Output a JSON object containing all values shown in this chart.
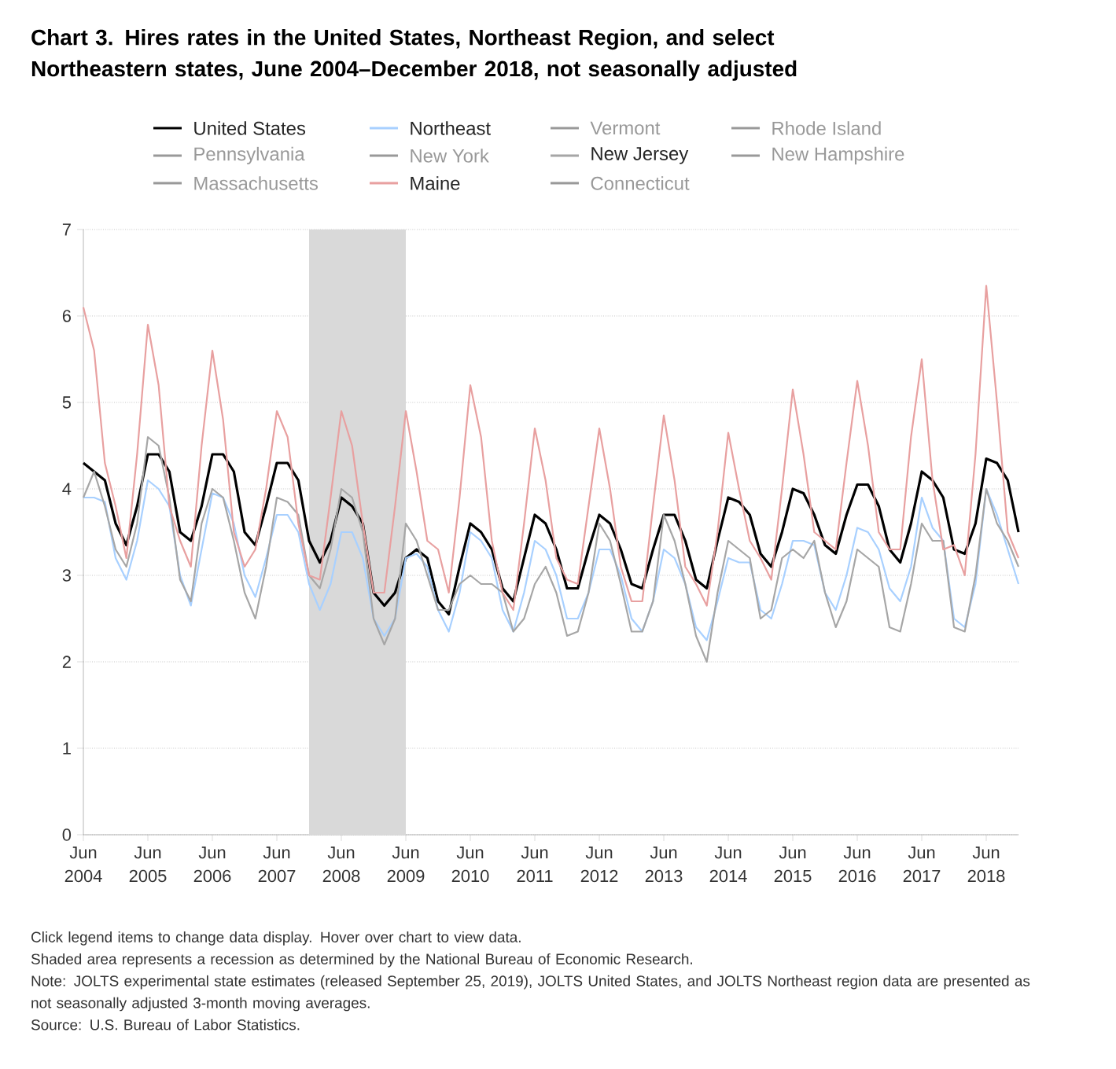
{
  "chart_data": {
    "type": "line",
    "title": "Chart 3. Hires rates in the United States, Northeast Region, and select Northeastern states, June 2004–December 2018, not seasonally adjusted",
    "x": [
      "2004-06",
      "2004-08",
      "2004-10",
      "2004-12",
      "2005-02",
      "2005-04",
      "2005-06",
      "2005-08",
      "2005-10",
      "2005-12",
      "2006-02",
      "2006-04",
      "2006-06",
      "2006-08",
      "2006-10",
      "2006-12",
      "2007-02",
      "2007-04",
      "2007-06",
      "2007-08",
      "2007-10",
      "2007-12",
      "2008-02",
      "2008-04",
      "2008-06",
      "2008-08",
      "2008-10",
      "2008-12",
      "2009-02",
      "2009-04",
      "2009-06",
      "2009-08",
      "2009-10",
      "2009-12",
      "2010-02",
      "2010-04",
      "2010-06",
      "2010-08",
      "2010-10",
      "2010-12",
      "2011-02",
      "2011-04",
      "2011-06",
      "2011-08",
      "2011-10",
      "2011-12",
      "2012-02",
      "2012-04",
      "2012-06",
      "2012-08",
      "2012-10",
      "2012-12",
      "2013-02",
      "2013-04",
      "2013-06",
      "2013-08",
      "2013-10",
      "2013-12",
      "2014-02",
      "2014-04",
      "2014-06",
      "2014-08",
      "2014-10",
      "2014-12",
      "2015-02",
      "2015-04",
      "2015-06",
      "2015-08",
      "2015-10",
      "2015-12",
      "2016-02",
      "2016-04",
      "2016-06",
      "2016-08",
      "2016-10",
      "2016-12",
      "2017-02",
      "2017-04",
      "2017-06",
      "2017-08",
      "2017-10",
      "2017-12",
      "2018-02",
      "2018-04",
      "2018-06",
      "2018-08",
      "2018-10",
      "2018-12"
    ],
    "series": [
      {
        "name": "United States",
        "color": "#000000",
        "values": [
          4.3,
          4.2,
          4.1,
          3.6,
          3.35,
          3.8,
          4.4,
          4.4,
          4.2,
          3.5,
          3.4,
          3.8,
          4.4,
          4.4,
          4.2,
          3.5,
          3.35,
          3.8,
          4.3,
          4.3,
          4.1,
          3.4,
          3.15,
          3.4,
          3.9,
          3.8,
          3.6,
          2.8,
          2.65,
          2.8,
          3.2,
          3.3,
          3.2,
          2.7,
          2.55,
          3.1,
          3.6,
          3.5,
          3.3,
          2.85,
          2.7,
          3.2,
          3.7,
          3.6,
          3.3,
          2.85,
          2.85,
          3.3,
          3.7,
          3.6,
          3.3,
          2.9,
          2.85,
          3.3,
          3.7,
          3.7,
          3.4,
          2.95,
          2.85,
          3.4,
          3.9,
          3.85,
          3.7,
          3.25,
          3.1,
          3.5,
          4.0,
          3.95,
          3.7,
          3.35,
          3.25,
          3.7,
          4.05,
          4.05,
          3.8,
          3.3,
          3.15,
          3.6,
          4.2,
          4.1,
          3.9,
          3.3,
          3.25,
          3.6,
          4.35,
          4.3,
          4.1,
          3.5
        ]
      },
      {
        "name": "Northeast",
        "color": "#a8d0ff",
        "values": [
          3.9,
          3.9,
          3.85,
          3.2,
          2.95,
          3.4,
          4.1,
          4.0,
          3.8,
          3.0,
          2.65,
          3.3,
          3.95,
          3.9,
          3.6,
          3.0,
          2.75,
          3.2,
          3.7,
          3.7,
          3.5,
          2.9,
          2.6,
          2.9,
          3.5,
          3.5,
          3.2,
          2.5,
          2.3,
          2.5,
          3.2,
          3.25,
          3.1,
          2.6,
          2.35,
          2.8,
          3.5,
          3.4,
          3.2,
          2.6,
          2.35,
          2.8,
          3.4,
          3.3,
          3.0,
          2.5,
          2.5,
          2.8,
          3.3,
          3.3,
          3.0,
          2.5,
          2.35,
          2.7,
          3.3,
          3.2,
          2.9,
          2.4,
          2.25,
          2.7,
          3.2,
          3.15,
          3.15,
          2.6,
          2.5,
          2.9,
          3.4,
          3.4,
          3.35,
          2.8,
          2.6,
          3.0,
          3.55,
          3.5,
          3.3,
          2.85,
          2.7,
          3.1,
          3.9,
          3.55,
          3.4,
          2.5,
          2.4,
          2.9,
          4.0,
          3.7,
          3.3,
          2.9
        ]
      },
      {
        "name": "Vermont",
        "color": "#999999",
        "values": [
          null,
          null,
          null,
          null,
          null,
          null,
          null,
          null,
          null,
          null,
          null,
          null,
          null,
          null,
          null,
          null,
          null,
          null,
          null,
          null,
          null,
          null,
          null,
          null,
          null,
          null,
          null,
          null,
          null,
          null,
          null,
          null,
          null,
          null,
          null,
          null,
          null,
          null,
          null,
          null,
          null,
          null,
          null,
          null,
          null,
          null,
          null,
          null,
          null,
          null,
          null,
          null,
          null,
          null,
          null,
          null,
          null,
          null,
          null,
          null,
          null,
          null,
          null,
          null,
          null,
          null,
          null,
          null,
          null,
          null,
          null,
          null,
          null,
          null,
          null,
          null,
          null,
          null,
          null,
          null,
          null,
          null,
          null,
          null,
          null,
          null,
          null,
          null
        ]
      },
      {
        "name": "Rhode Island",
        "color": "#999999",
        "values": [
          null,
          null,
          null,
          null,
          null,
          null,
          null,
          null,
          null,
          null,
          null,
          null,
          null,
          null,
          null,
          null,
          null,
          null,
          null,
          null,
          null,
          null,
          null,
          null,
          null,
          null,
          null,
          null,
          null,
          null,
          null,
          null,
          null,
          null,
          null,
          null,
          null,
          null,
          null,
          null,
          null,
          null,
          null,
          null,
          null,
          null,
          null,
          null,
          null,
          null,
          null,
          null,
          null,
          null,
          null,
          null,
          null,
          null,
          null,
          null,
          null,
          null,
          null,
          null,
          null,
          null,
          null,
          null,
          null,
          null,
          null,
          null,
          null,
          null,
          null,
          null,
          null,
          null,
          null,
          null,
          null,
          null,
          null,
          null,
          null,
          null,
          null,
          null
        ]
      },
      {
        "name": "Pennsylvania",
        "color": "#999999",
        "values": [
          null,
          null,
          null,
          null,
          null,
          null,
          null,
          null,
          null,
          null,
          null,
          null,
          null,
          null,
          null,
          null,
          null,
          null,
          null,
          null,
          null,
          null,
          null,
          null,
          null,
          null,
          null,
          null,
          null,
          null,
          null,
          null,
          null,
          null,
          null,
          null,
          null,
          null,
          null,
          null,
          null,
          null,
          null,
          null,
          null,
          null,
          null,
          null,
          null,
          null,
          null,
          null,
          null,
          null,
          null,
          null,
          null,
          null,
          null,
          null,
          null,
          null,
          null,
          null,
          null,
          null,
          null,
          null,
          null,
          null,
          null,
          null,
          null,
          null,
          null,
          null,
          null,
          null,
          null,
          null,
          null,
          null,
          null,
          null,
          null,
          null,
          null,
          null
        ]
      },
      {
        "name": "New York",
        "color": "#999999",
        "values": [
          null,
          null,
          null,
          null,
          null,
          null,
          null,
          null,
          null,
          null,
          null,
          null,
          null,
          null,
          null,
          null,
          null,
          null,
          null,
          null,
          null,
          null,
          null,
          null,
          null,
          null,
          null,
          null,
          null,
          null,
          null,
          null,
          null,
          null,
          null,
          null,
          null,
          null,
          null,
          null,
          null,
          null,
          null,
          null,
          null,
          null,
          null,
          null,
          null,
          null,
          null,
          null,
          null,
          null,
          null,
          null,
          null,
          null,
          null,
          null,
          null,
          null,
          null,
          null,
          null,
          null,
          null,
          null,
          null,
          null,
          null,
          null,
          null,
          null,
          null,
          null,
          null,
          null,
          null,
          null,
          null,
          null,
          null,
          null,
          null,
          null,
          null,
          null
        ]
      },
      {
        "name": "New Jersey",
        "color": "#a6a6a6",
        "values": [
          3.9,
          4.2,
          3.8,
          3.3,
          3.1,
          3.6,
          4.6,
          4.5,
          3.9,
          2.95,
          2.7,
          3.6,
          4.0,
          3.9,
          3.4,
          2.8,
          2.5,
          3.1,
          3.9,
          3.85,
          3.7,
          3.0,
          2.85,
          3.3,
          4.0,
          3.9,
          3.5,
          2.5,
          2.2,
          2.5,
          3.6,
          3.4,
          3.0,
          2.6,
          2.6,
          2.9,
          3.0,
          2.9,
          2.9,
          2.8,
          2.35,
          2.5,
          2.9,
          3.1,
          2.8,
          2.3,
          2.35,
          2.8,
          3.6,
          3.4,
          2.9,
          2.35,
          2.35,
          2.7,
          3.7,
          3.4,
          2.9,
          2.3,
          2.0,
          2.8,
          3.4,
          3.3,
          3.2,
          2.5,
          2.6,
          3.2,
          3.3,
          3.2,
          3.4,
          2.8,
          2.4,
          2.7,
          3.3,
          3.2,
          3.1,
          2.4,
          2.35,
          2.9,
          3.6,
          3.4,
          3.4,
          2.4,
          2.35,
          3.0,
          4.0,
          3.6,
          3.4,
          3.1
        ]
      },
      {
        "name": "New Hampshire",
        "color": "#999999",
        "values": [
          null,
          null,
          null,
          null,
          null,
          null,
          null,
          null,
          null,
          null,
          null,
          null,
          null,
          null,
          null,
          null,
          null,
          null,
          null,
          null,
          null,
          null,
          null,
          null,
          null,
          null,
          null,
          null,
          null,
          null,
          null,
          null,
          null,
          null,
          null,
          null,
          null,
          null,
          null,
          null,
          null,
          null,
          null,
          null,
          null,
          null,
          null,
          null,
          null,
          null,
          null,
          null,
          null,
          null,
          null,
          null,
          null,
          null,
          null,
          null,
          null,
          null,
          null,
          null,
          null,
          null,
          null,
          null,
          null,
          null,
          null,
          null,
          null,
          null,
          null,
          null,
          null,
          null,
          null,
          null,
          null,
          null,
          null,
          null,
          null,
          null,
          null,
          null
        ]
      },
      {
        "name": "Massachusetts",
        "color": "#999999",
        "values": [
          null,
          null,
          null,
          null,
          null,
          null,
          null,
          null,
          null,
          null,
          null,
          null,
          null,
          null,
          null,
          null,
          null,
          null,
          null,
          null,
          null,
          null,
          null,
          null,
          null,
          null,
          null,
          null,
          null,
          null,
          null,
          null,
          null,
          null,
          null,
          null,
          null,
          null,
          null,
          null,
          null,
          null,
          null,
          null,
          null,
          null,
          null,
          null,
          null,
          null,
          null,
          null,
          null,
          null,
          null,
          null,
          null,
          null,
          null,
          null,
          null,
          null,
          null,
          null,
          null,
          null,
          null,
          null,
          null,
          null,
          null,
          null,
          null,
          null,
          null,
          null,
          null,
          null,
          null,
          null,
          null,
          null,
          null,
          null,
          null,
          null,
          null,
          null
        ]
      },
      {
        "name": "Maine",
        "color": "#e8a0a0",
        "values": [
          6.1,
          5.6,
          4.3,
          3.8,
          3.2,
          4.4,
          5.9,
          5.2,
          3.8,
          3.4,
          3.1,
          4.5,
          5.6,
          4.8,
          3.5,
          3.1,
          3.3,
          4.0,
          4.9,
          4.6,
          3.6,
          3.0,
          2.95,
          3.9,
          4.9,
          4.5,
          3.6,
          2.8,
          2.8,
          3.8,
          4.9,
          4.2,
          3.4,
          3.3,
          2.8,
          3.9,
          5.2,
          4.6,
          3.4,
          2.8,
          2.6,
          3.6,
          4.7,
          4.1,
          3.2,
          2.95,
          2.9,
          3.8,
          4.7,
          4.0,
          3.1,
          2.7,
          2.7,
          3.8,
          4.85,
          4.1,
          3.1,
          2.9,
          2.65,
          3.5,
          4.65,
          4.0,
          3.4,
          3.2,
          2.95,
          4.0,
          5.15,
          4.4,
          3.5,
          3.4,
          3.3,
          4.3,
          5.25,
          4.5,
          3.5,
          3.3,
          3.3,
          4.6,
          5.5,
          4.1,
          3.3,
          3.35,
          3.0,
          4.4,
          6.35,
          5.0,
          3.5,
          3.2
        ]
      },
      {
        "name": "Connecticut",
        "color": "#999999",
        "values": [
          null,
          null,
          null,
          null,
          null,
          null,
          null,
          null,
          null,
          null,
          null,
          null,
          null,
          null,
          null,
          null,
          null,
          null,
          null,
          null,
          null,
          null,
          null,
          null,
          null,
          null,
          null,
          null,
          null,
          null,
          null,
          null,
          null,
          null,
          null,
          null,
          null,
          null,
          null,
          null,
          null,
          null,
          null,
          null,
          null,
          null,
          null,
          null,
          null,
          null,
          null,
          null,
          null,
          null,
          null,
          null,
          null,
          null,
          null,
          null,
          null,
          null,
          null,
          null,
          null,
          null,
          null,
          null,
          null,
          null,
          null,
          null,
          null,
          null,
          null,
          null,
          null,
          null,
          null,
          null,
          null,
          null,
          null,
          null,
          null,
          null,
          null,
          null
        ]
      }
    ],
    "xlim": [
      "2004-06",
      "2018-12"
    ],
    "xticks": [
      {
        "value": "2004-06",
        "label": "Jun 2004"
      },
      {
        "value": "2005-06",
        "label": "Jun 2005"
      },
      {
        "value": "2006-06",
        "label": "Jun 2006"
      },
      {
        "value": "2007-06",
        "label": "Jun 2007"
      },
      {
        "value": "2008-06",
        "label": "Jun 2008"
      },
      {
        "value": "2009-06",
        "label": "Jun 2009"
      },
      {
        "value": "2010-06",
        "label": "Jun 2010"
      },
      {
        "value": "2011-06",
        "label": "Jun 2011"
      },
      {
        "value": "2012-06",
        "label": "Jun 2012"
      },
      {
        "value": "2013-06",
        "label": "Jun 2013"
      },
      {
        "value": "2014-06",
        "label": "Jun 2014"
      },
      {
        "value": "2015-06",
        "label": "Jun 2015"
      },
      {
        "value": "2016-06",
        "label": "Jun 2016"
      },
      {
        "value": "2017-06",
        "label": "Jun 2017"
      },
      {
        "value": "2018-06",
        "label": "Jun 2018"
      }
    ],
    "ylim": [
      0,
      7
    ],
    "yticks": [
      0,
      1,
      2,
      3,
      4,
      5,
      6,
      7
    ],
    "grid": "y",
    "legend": "top",
    "bands": [
      {
        "axis": "x",
        "from": "2007-12",
        "to": "2009-06",
        "color": "#d9d9d9"
      }
    ],
    "annotations": [
      "Click legend items to change data display. Hover over chart to view data.",
      "Shaded area represents a recession as determined by the National Bureau of Economic Research.",
      "Note: JOLTS experimental state estimates (released September 25, 2019), JOLTS United States, and JOLTS Northeast region data are presented as not seasonally adjusted 3-month moving averages.",
      "Source: U.S. Bureau of Labor Statistics."
    ]
  }
}
